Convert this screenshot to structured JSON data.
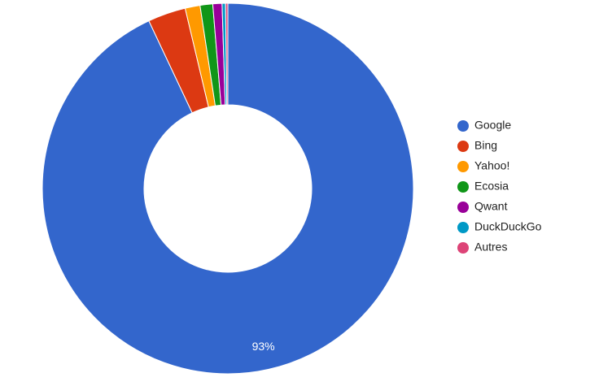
{
  "chart_data": {
    "type": "donut",
    "categories": [
      "Google",
      "Bing",
      "Yahoo!",
      "Ecosia",
      "Qwant",
      "DuckDuckGo",
      "Autres"
    ],
    "values": [
      93,
      3.3,
      1.3,
      1.1,
      0.8,
      0.3,
      0.2
    ],
    "value_labels": [
      "93%",
      null,
      null,
      null,
      null,
      null,
      null
    ],
    "colors": [
      "#3366cc",
      "#dc3912",
      "#ff9900",
      "#109618",
      "#990099",
      "#0099c6",
      "#dd4477"
    ],
    "legend": "right"
  }
}
